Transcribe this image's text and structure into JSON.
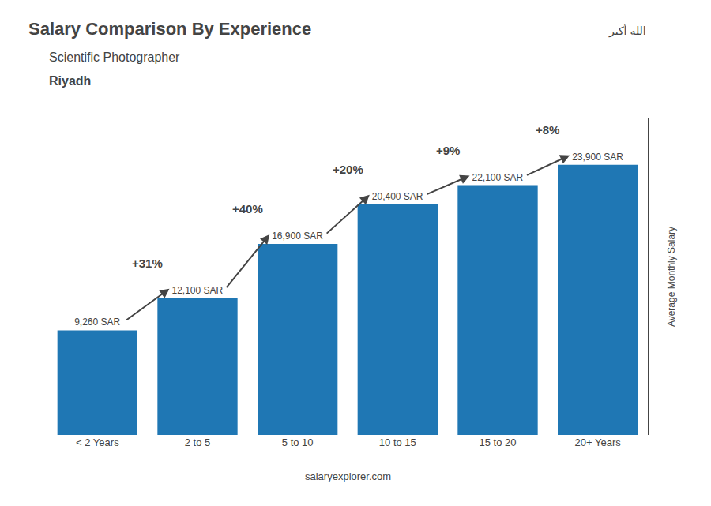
{
  "chart_data": {
    "type": "bar",
    "title": "Salary Comparison By Experience",
    "subtitle": "Scientific Photographer",
    "location": "Riyadh",
    "categories": [
      "< 2 Years",
      "2 to 5",
      "5 to 10",
      "10 to 15",
      "15 to 20",
      "20+ Years"
    ],
    "values": [
      9260,
      12100,
      16900,
      20400,
      22100,
      23900
    ],
    "value_labels": [
      "9,260 SAR",
      "12,100 SAR",
      "16,900 SAR",
      "20,400 SAR",
      "22,100 SAR",
      "23,900 SAR"
    ],
    "data_labels": true,
    "annotations": [
      "+31%",
      "+40%",
      "+20%",
      "+9%",
      "+8%"
    ],
    "ylabel": "Average Monthly Salary",
    "ylim": [
      0,
      28000
    ],
    "grid": false,
    "tick_labels": "x",
    "footer": "salaryexplorer.com",
    "flag_text": "الله أكبر"
  }
}
